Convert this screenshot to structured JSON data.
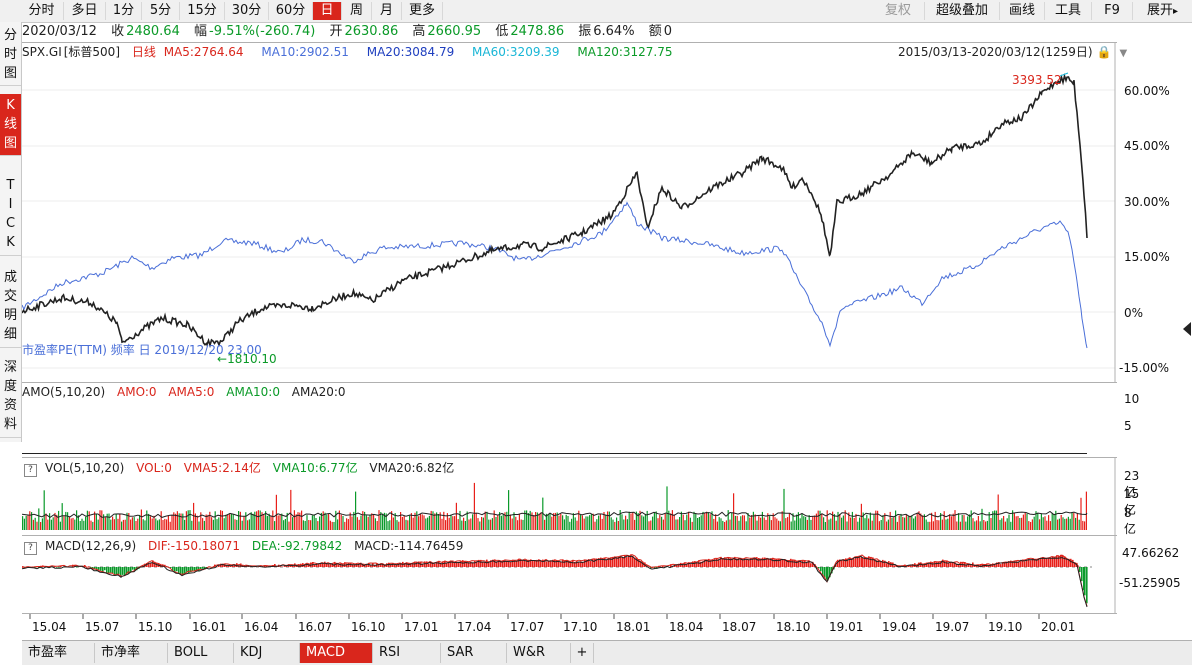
{
  "toolbar": {
    "periods": [
      "分时",
      "多日",
      "1分",
      "5分",
      "15分",
      "30分",
      "60分",
      "日",
      "周",
      "月",
      "更多"
    ],
    "active_period": "日",
    "right_buttons": {
      "fuquan": "复权",
      "overlay": "超级叠加",
      "draw": "画线",
      "tools": "工具",
      "f9": "F9",
      "expand": "展开"
    }
  },
  "infobar": {
    "date": "2020/03/12",
    "close_label": "收",
    "close": "2480.64",
    "change_label": "幅",
    "change": "-9.51%(-260.74)",
    "open_label": "开",
    "open": "2630.86",
    "high_label": "高",
    "high": "2660.95",
    "low_label": "低",
    "low": "2478.86",
    "amplitude_label": "振",
    "amplitude": "6.64%",
    "amount_label": "额",
    "amount": "0"
  },
  "sidenav": {
    "items": [
      "分\n时\n图",
      "K\n线\n图",
      "T\nI\nC\nK",
      "成\n交\n明\n细",
      "深\n度\n资\n料"
    ],
    "active": "K线图"
  },
  "main_pane": {
    "symbol": "SPX.GI",
    "name": "[标普500]",
    "period": "日线",
    "ma5": "MA5:2764.64",
    "ma10": "MA10:2902.51",
    "ma20": "MA20:3084.79",
    "ma60": "MA60:3209.39",
    "ma120": "MA120:3127.75",
    "range": "2015/03/13-2020/03/12(1259日)",
    "peak_label": "3393.52",
    "low_label": "1810.10",
    "overlay_label": "市盈率PE(TTM) 频率 日 2019/12/20 23.00",
    "y_ticks": [
      "60.00%",
      "45.00%",
      "30.00%",
      "15.00%",
      "0%",
      "-15.00%"
    ],
    "colors": {
      "price": "#222222",
      "pe": "#4a6fd8",
      "ma5": "#d9261c",
      "ma10": "#4a6fd8",
      "ma20": "#1f3fbf",
      "ma60": "#19b6d6",
      "ma120": "#0b9a28"
    }
  },
  "amo_pane": {
    "title": "AMO(5,10,20)",
    "amo": "AMO:0",
    "ama5": "AMA5:0",
    "ama10": "AMA10:0",
    "ama20": "AMA20:0",
    "y_ticks": [
      "10",
      "5"
    ]
  },
  "vol_pane": {
    "title": "VOL(5,10,20)",
    "vol": "VOL:0",
    "vma5": "VMA5:2.14亿",
    "vma10": "VMA10:6.77亿",
    "vma20": "VMA20:6.82亿",
    "y_ticks": [
      "23亿",
      "15亿",
      "8亿"
    ]
  },
  "macd_pane": {
    "title": "MACD(12,26,9)",
    "dif": "DIF:-150.18071",
    "dea": "DEA:-92.79842",
    "macd": "MACD:-114.76459",
    "y_ticks": [
      "47.66262",
      "-51.25905"
    ]
  },
  "x_axis": [
    "15.04",
    "15.07",
    "15.10",
    "16.01",
    "16.04",
    "16.07",
    "16.10",
    "17.01",
    "17.04",
    "17.07",
    "17.10",
    "18.01",
    "18.04",
    "18.07",
    "18.10",
    "19.01",
    "19.04",
    "19.07",
    "19.10",
    "20.01"
  ],
  "bottom_tabs": [
    "市盈率",
    "市净率",
    "BOLL",
    "KDJ",
    "MACD",
    "RSI",
    "SAR",
    "W&R",
    "+"
  ],
  "active_tab": "MACD"
}
